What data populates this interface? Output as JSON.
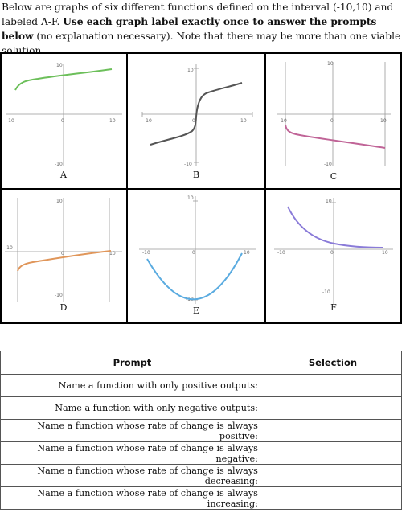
{
  "instructions": {
    "line1": "Below are graphs of six different functions defined on the interval (-10,10) and labeled A-F.",
    "bold": "Use each graph label exactly once to answer the prompts below",
    "rest": " (no explanation necessary). Note that there may be more than one viable solution."
  },
  "graphs": [
    {
      "label": "A",
      "color": "#6cbf5a",
      "x_ticks": [
        "-10",
        "0",
        "10"
      ],
      "y_ticks": [
        "10",
        "-10"
      ]
    },
    {
      "label": "B",
      "color": "#555555",
      "x_ticks": [
        "-10",
        "0",
        "10"
      ],
      "y_ticks": [
        "10",
        "-10"
      ]
    },
    {
      "label": "C",
      "color": "#c06497",
      "x_ticks": [
        "-10",
        "0",
        "10"
      ],
      "y_ticks": [
        "10",
        "-10"
      ]
    },
    {
      "label": "D",
      "color": "#e0965a",
      "x_ticks": [
        "-10",
        "0",
        "10"
      ],
      "y_ticks": [
        "10",
        "-10"
      ]
    },
    {
      "label": "E",
      "color": "#5aabe0",
      "x_ticks": [
        "-10",
        "0",
        "10"
      ],
      "y_ticks": [
        "10",
        "-10"
      ]
    },
    {
      "label": "F",
      "color": "#8a7bd8",
      "x_ticks": [
        "-10",
        "0",
        "10"
      ],
      "y_ticks": [
        "10",
        "-10"
      ]
    }
  ],
  "table": {
    "headers": {
      "prompt": "Prompt",
      "selection": "Selection"
    },
    "rows": [
      {
        "prompt": "Name a function with only positive outputs:",
        "selection": ""
      },
      {
        "prompt": "Name a function with only negative outputs:",
        "selection": ""
      },
      {
        "prompt": "Name a function whose rate of change is always positive:",
        "selection": ""
      },
      {
        "prompt": "Name a function whose rate of change is always negative:",
        "selection": ""
      },
      {
        "prompt": "Name a function whose rate of change is always decreasing:",
        "selection": ""
      },
      {
        "prompt": "Name a function whose rate of change is always increasing:",
        "selection": ""
      }
    ]
  }
}
